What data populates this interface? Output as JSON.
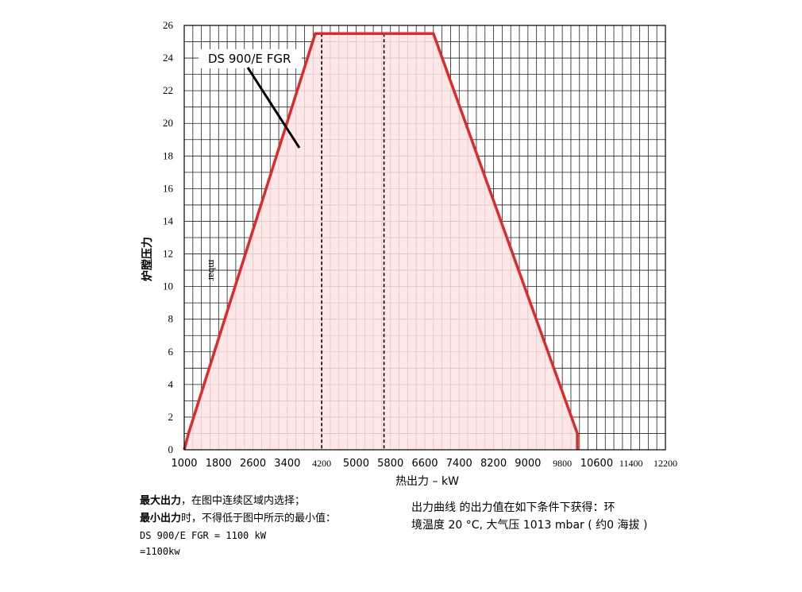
{
  "chart_data": {
    "type": "area",
    "xlabel": "热出力 – kW",
    "ylabel": "炉膛压力",
    "y_unit": "mbar",
    "xlim": [
      1000,
      12200
    ],
    "ylim": [
      0,
      26
    ],
    "x_tick_labels": [
      "1000",
      "1800",
      "2600",
      "3400",
      "4200",
      "5000",
      "5800",
      "6600",
      "7400",
      "8200",
      "9000",
      "9800",
      "10600",
      "11400",
      "12200"
    ],
    "y_tick_labels": [
      "0",
      "2",
      "4",
      "6",
      "8",
      "10",
      "12",
      "14",
      "16",
      "18",
      "20",
      "22",
      "24",
      "26"
    ],
    "grid": true,
    "series": [
      {
        "name": "DS 900/E FGR",
        "color": "#dd2a2a",
        "fill": "#fde3e3",
        "x": [
          1000,
          1100,
          4050,
          6800,
          10150,
          10150
        ],
        "y": [
          0,
          1,
          25.5,
          25.5,
          1,
          0
        ]
      }
    ],
    "annotations": {
      "curve_label": "DS 900/E FGR",
      "dashed_lines_x": [
        4200,
        5650
      ]
    }
  },
  "notes": {
    "max_title": "最大出力",
    "max_text": "，在图中连续区域内选择；",
    "min_title": "最小出力",
    "min_text": "时，不得低于图中所示的最小值：",
    "min_value_line": "DS 900/E FGR =  1100 kW",
    "min_value_alt": "=1100kw",
    "conditions_line1": "出力曲线 的出力值在如下条件下获得：环",
    "conditions_line2": "境温度 20 °C, 大气压 1013 mbar ( 约0  海拔 )"
  }
}
